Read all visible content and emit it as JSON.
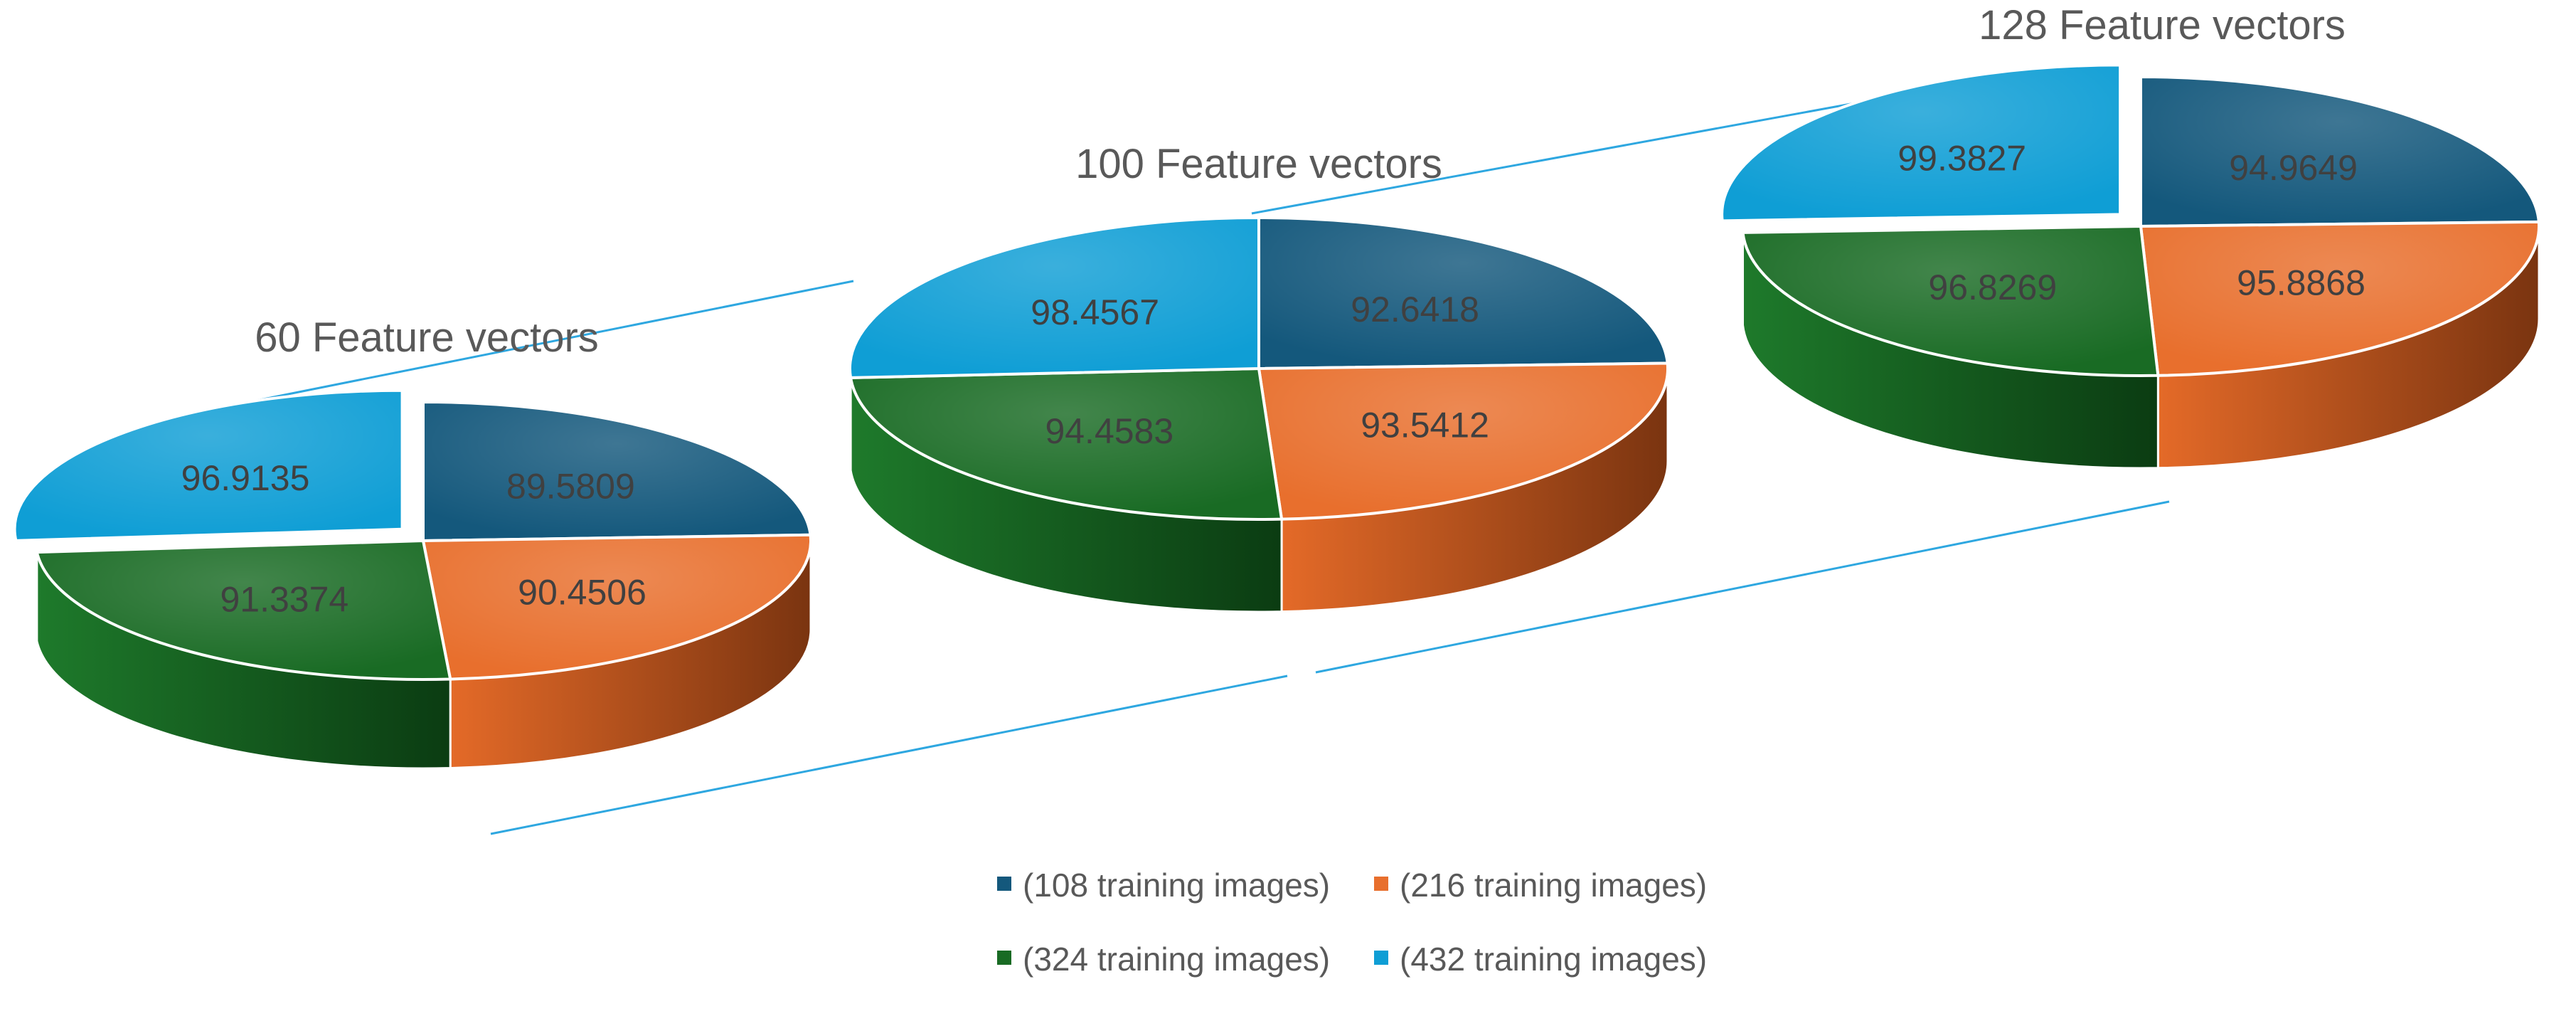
{
  "chart_data": [
    {
      "type": "pie",
      "title": "60 Feature vectors",
      "categories": [
        "(108 training images)",
        "(216 training images)",
        "(324 training images)",
        "(432 training images)"
      ],
      "values": [
        89.5809,
        90.4506,
        91.3374,
        96.9135
      ],
      "labels": [
        "89.5809",
        "90.4506",
        "91.3374",
        "96.9135"
      ],
      "exploded": "(432 training images)"
    },
    {
      "type": "pie",
      "title": "100 Feature vectors",
      "categories": [
        "(108 training images)",
        "(216 training images)",
        "(324 training images)",
        "(432 training images)"
      ],
      "values": [
        92.6418,
        93.5412,
        94.4583,
        98.4567
      ],
      "labels": [
        "92.6418",
        "93.5412",
        "94.4583",
        "98.4567"
      ]
    },
    {
      "type": "pie",
      "title": "128 Feature vectors",
      "categories": [
        "(108 training images)",
        "(216 training images)",
        "(324 training images)",
        "(432 training images)"
      ],
      "values": [
        94.9649,
        95.8868,
        96.8269,
        99.3827
      ],
      "labels": [
        "94.9649",
        "95.8868",
        "96.8269",
        "99.3827"
      ],
      "exploded": "(432 training images)"
    }
  ],
  "legend": {
    "placement": "bottom",
    "items": [
      {
        "label": "(108 training images)",
        "color": "#14587c"
      },
      {
        "label": "(216 training images)",
        "color": "#e86f2d"
      },
      {
        "label": "(324 training images)",
        "color": "#196b24"
      },
      {
        "label": "(432 training images)",
        "color": "#0f9ed5"
      }
    ]
  },
  "colors": {
    "connector": "#2ea7e0",
    "label": "#404040",
    "title": "#595959"
  }
}
